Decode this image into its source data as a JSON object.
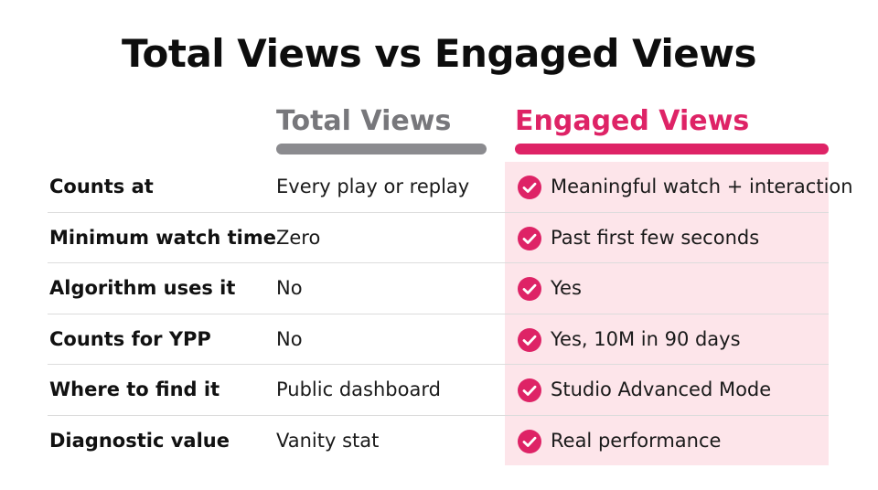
{
  "title": "Total Views vs Engaged Views",
  "columns": {
    "total": "Total Views",
    "engaged": "Engaged Views"
  },
  "colors": {
    "accent": "#de2366",
    "muted": "#8b8b8f",
    "highlight_bg": "#fde5ea"
  },
  "rows": [
    {
      "label": "Counts at",
      "total": "Every play or replay",
      "engaged": "Meaningful watch + interaction"
    },
    {
      "label": "Minimum watch time",
      "total": "Zero",
      "engaged": "Past first few seconds"
    },
    {
      "label": "Algorithm uses it",
      "total": "No",
      "engaged": "Yes"
    },
    {
      "label": "Counts for YPP",
      "total": "No",
      "engaged": "Yes, 10M in 90 days"
    },
    {
      "label": "Where to find it",
      "total": "Public dashboard",
      "engaged": "Studio Advanced Mode"
    },
    {
      "label": "Diagnostic value",
      "total": "Vanity stat",
      "engaged": "Real performance"
    }
  ],
  "icons": {
    "engaged_row": "check-circle-icon"
  }
}
